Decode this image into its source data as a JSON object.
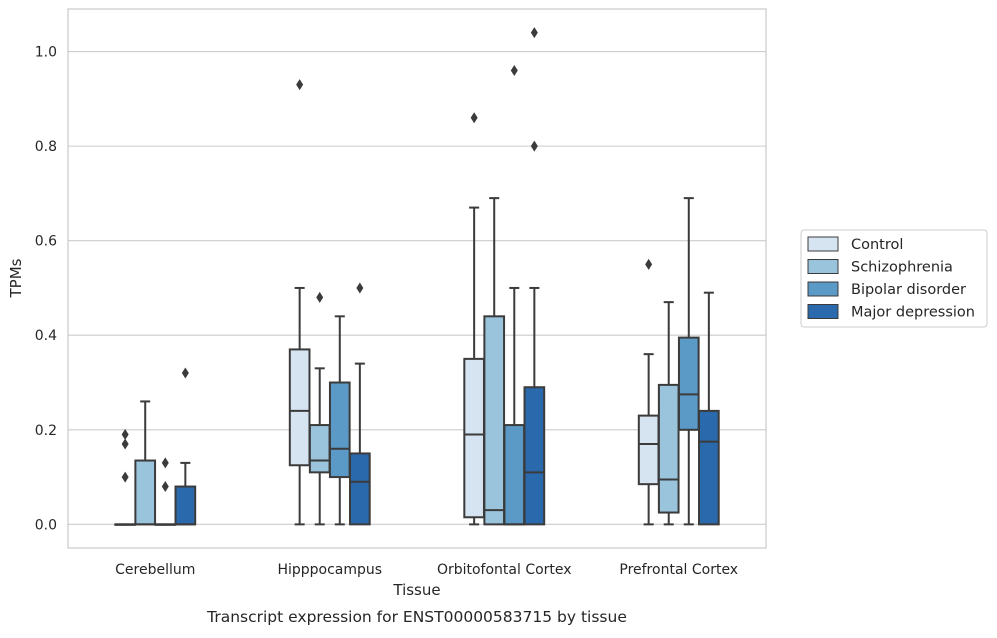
{
  "chart_data": {
    "type": "boxplot",
    "xlabel": "Tissue",
    "ylabel": "TPMs",
    "caption": "Transcript expression for ENST00000583715 by tissue",
    "ylim": [
      -0.05,
      1.09
    ],
    "yticks": [
      0.0,
      0.2,
      0.4,
      0.6,
      0.8,
      1.0
    ],
    "ytick_labels": [
      "0.0",
      "0.2",
      "0.4",
      "0.6",
      "0.8",
      "1.0"
    ],
    "grid": "horizontal",
    "legend_position": "right",
    "categories": [
      "Cerebellum",
      "Hipppocampus",
      "Orbitofontal Cortex",
      "Prefrontal Cortex"
    ],
    "series": [
      {
        "name": "Control",
        "color": "#d6e4f2",
        "boxes": [
          {
            "whislo": 0,
            "q1": 0,
            "med": 0,
            "q3": 0,
            "whishi": 0,
            "fliers": [
              0.1,
              0.17,
              0.19
            ]
          },
          {
            "whislo": 0,
            "q1": 0.125,
            "med": 0.24,
            "q3": 0.37,
            "whishi": 0.5,
            "fliers": [
              0.93
            ]
          },
          {
            "whislo": 0,
            "q1": 0.015,
            "med": 0.19,
            "q3": 0.35,
            "whishi": 0.67,
            "fliers": [
              0.86
            ]
          },
          {
            "whislo": 0,
            "q1": 0.085,
            "med": 0.17,
            "q3": 0.23,
            "whishi": 0.36,
            "fliers": [
              0.55
            ]
          }
        ]
      },
      {
        "name": "Schizophrenia",
        "color": "#9ac3dc",
        "boxes": [
          {
            "whislo": 0,
            "q1": 0,
            "med": 0,
            "q3": 0.135,
            "whishi": 0.26,
            "fliers": []
          },
          {
            "whislo": 0,
            "q1": 0.11,
            "med": 0.135,
            "q3": 0.21,
            "whishi": 0.33,
            "fliers": [
              0.48
            ]
          },
          {
            "whislo": 0,
            "q1": 0,
            "med": 0.03,
            "q3": 0.44,
            "whishi": 0.69,
            "fliers": []
          },
          {
            "whislo": 0,
            "q1": 0.025,
            "med": 0.095,
            "q3": 0.295,
            "whishi": 0.47,
            "fliers": []
          }
        ]
      },
      {
        "name": "Bipolar disorder",
        "color": "#5b9ac6",
        "boxes": [
          {
            "whislo": 0,
            "q1": 0,
            "med": 0,
            "q3": 0,
            "whishi": 0,
            "fliers": [
              0.08,
              0.13
            ]
          },
          {
            "whislo": 0,
            "q1": 0.1,
            "med": 0.16,
            "q3": 0.3,
            "whishi": 0.44,
            "fliers": []
          },
          {
            "whislo": 0,
            "q1": 0,
            "med": 0,
            "q3": 0.21,
            "whishi": 0.5,
            "fliers": [
              0.96
            ]
          },
          {
            "whislo": 0,
            "q1": 0.2,
            "med": 0.275,
            "q3": 0.395,
            "whishi": 0.69,
            "fliers": []
          }
        ]
      },
      {
        "name": "Major depression",
        "color": "#2a6aac",
        "boxes": [
          {
            "whislo": 0,
            "q1": 0,
            "med": 0,
            "q3": 0.08,
            "whishi": 0.13,
            "fliers": [
              0.32
            ]
          },
          {
            "whislo": 0,
            "q1": 0,
            "med": 0.09,
            "q3": 0.15,
            "whishi": 0.34,
            "fliers": [
              0.5
            ]
          },
          {
            "whislo": 0,
            "q1": 0,
            "med": 0.11,
            "q3": 0.29,
            "whishi": 0.5,
            "fliers": [
              0.8,
              1.04
            ]
          },
          {
            "whislo": 0,
            "q1": 0,
            "med": 0.175,
            "q3": 0.24,
            "whishi": 0.49,
            "fliers": []
          }
        ]
      }
    ]
  }
}
